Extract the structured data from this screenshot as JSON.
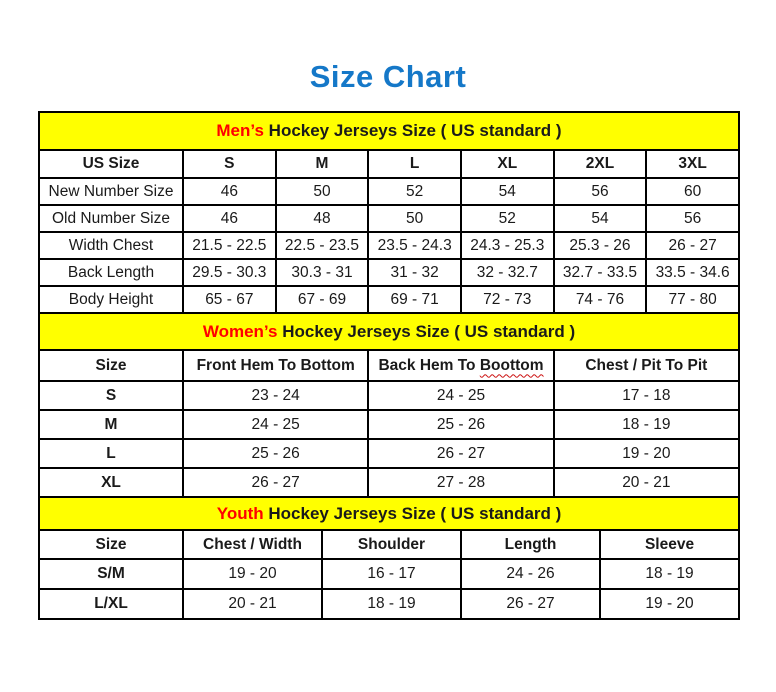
{
  "page": {
    "title": "Size Chart"
  },
  "colors": {
    "title_blue": "#1578c8",
    "banner_yellow": "#ffff00",
    "accent_red": "#ff0000",
    "squiggle_red": "#cc1111"
  },
  "chart_data": [
    {
      "type": "table",
      "id": "mens",
      "banner": {
        "highlight": "Men’s",
        "rest": " Hockey Jerseys Size ( US standard )"
      },
      "header": [
        "US Size",
        "S",
        "M",
        "L",
        "XL",
        "2XL",
        "3XL"
      ],
      "rows": [
        {
          "label": "New Number Size",
          "values": [
            "46",
            "50",
            "52",
            "54",
            "56",
            "60"
          ]
        },
        {
          "label": "Old Number Size",
          "values": [
            "46",
            "48",
            "50",
            "52",
            "54",
            "56"
          ]
        },
        {
          "label": "Width Chest",
          "values": [
            "21.5 - 22.5",
            "22.5 - 23.5",
            "23.5 - 24.3",
            "24.3 - 25.3",
            "25.3 - 26",
            "26 - 27"
          ]
        },
        {
          "label": "Back Length",
          "values": [
            "29.5 - 30.3",
            "30.3 - 31",
            "31 - 32",
            "32 - 32.7",
            "32.7 - 33.5",
            "33.5 - 34.6"
          ]
        },
        {
          "label": "Body Height",
          "values": [
            "65 - 67",
            "67 - 69",
            "69 - 71",
            "72 - 73",
            "74 - 76",
            "77 - 80"
          ]
        }
      ]
    },
    {
      "type": "table",
      "id": "womens",
      "banner": {
        "highlight": "Women’s",
        "rest": " Hockey Jerseys Size ( US standard )"
      },
      "header": [
        "Size",
        "Front Hem To Bottom",
        {
          "pre": "Back Hem To ",
          "wavy": "Boottom"
        },
        "Chest / Pit To Pit"
      ],
      "rows": [
        {
          "label": "S",
          "values": [
            "23 - 24",
            "24 - 25",
            "17 - 18"
          ]
        },
        {
          "label": "M",
          "values": [
            "24 - 25",
            "25 - 26",
            "18 - 19"
          ]
        },
        {
          "label": "L",
          "values": [
            "25 - 26",
            "26 - 27",
            "19 - 20"
          ]
        },
        {
          "label": "XL",
          "values": [
            "26 - 27",
            "27 - 28",
            "20 - 21"
          ]
        }
      ]
    },
    {
      "type": "table",
      "id": "youth",
      "banner": {
        "highlight": "Youth",
        "rest": " Hockey Jerseys Size ( US standard )"
      },
      "header": [
        "Size",
        "Chest / Width",
        "Shoulder",
        "Length",
        "Sleeve"
      ],
      "rows": [
        {
          "label": "S/M",
          "values": [
            "19 - 20",
            "16 - 17",
            "24 - 26",
            "18 - 19"
          ]
        },
        {
          "label": "L/XL",
          "values": [
            "20 - 21",
            "18 - 19",
            "26 - 27",
            "19 - 20"
          ]
        }
      ]
    }
  ]
}
